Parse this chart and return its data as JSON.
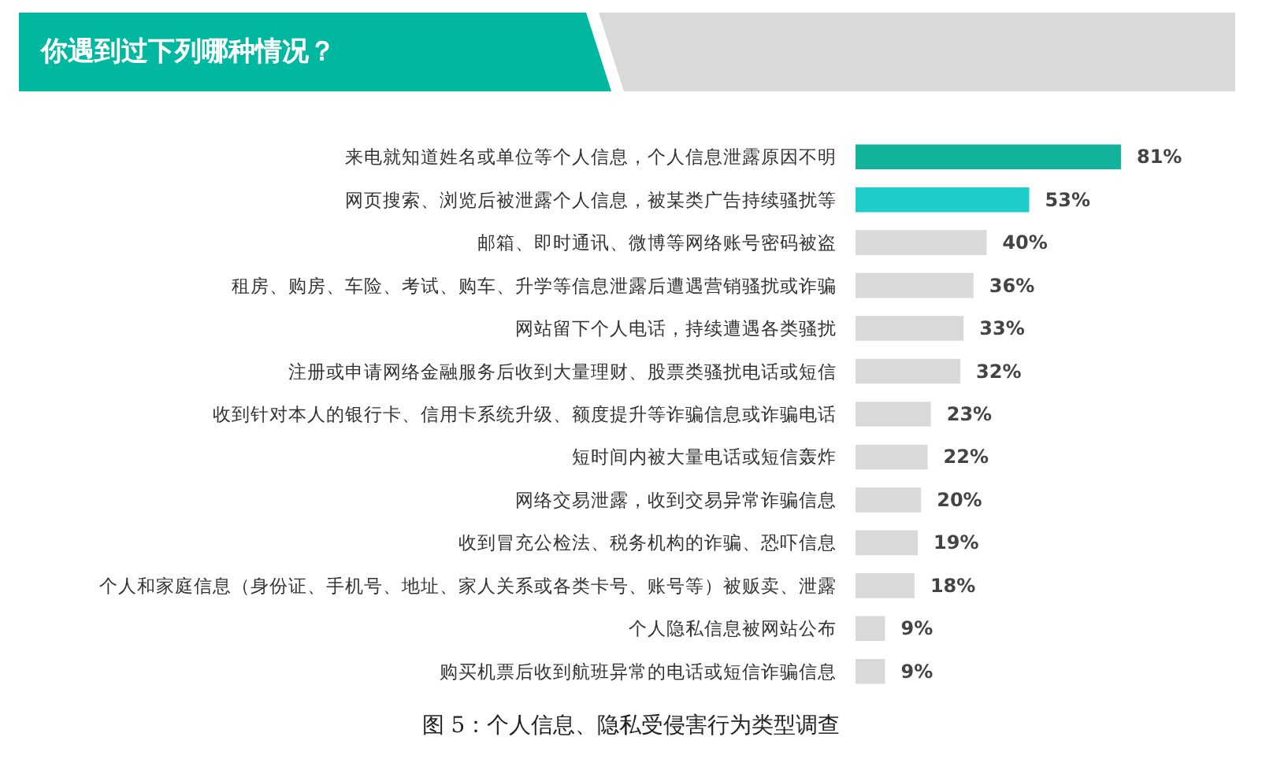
{
  "chart_data": {
    "type": "bar",
    "orientation": "horizontal",
    "title": "你遇到过下列哪种情况？",
    "categories": [
      "来电就知道姓名或单位等个人信息，个人信息泄露原因不明",
      "网页搜索、浏览后被泄露个人信息，被某类广告持续骚扰等",
      "邮箱、即时通讯、微博等网络账号密码被盗",
      "租房、购房、车险、考试、购车、升学等信息泄露后遭遇营销骚扰或诈骗",
      "网站留下个人电话，持续遭遇各类骚扰",
      "注册或申请网络金融服务后收到大量理财、股票类骚扰电话或短信",
      "收到针对本人的银行卡、信用卡系统升级、额度提升等诈骗信息或诈骗电话",
      "短时间内被大量电话或短信轰炸",
      "网络交易泄露，收到交易异常诈骗信息",
      "收到冒充公检法、税务机构的诈骗、恐吓信息",
      "个人和家庭信息（身份证、手机号、地址、家人关系或各类卡号、账号等）被贩卖、泄露",
      "个人隐私信息被网站公布",
      "购买机票后收到航班异常的电话或短信诈骗信息"
    ],
    "values": [
      81,
      53,
      40,
      36,
      33,
      32,
      23,
      22,
      20,
      19,
      18,
      9,
      9
    ],
    "value_labels": [
      "81%",
      "53%",
      "40%",
      "36%",
      "33%",
      "32%",
      "23%",
      "22%",
      "20%",
      "19%",
      "18%",
      "9%",
      "9%"
    ],
    "colors": [
      "#12b39a",
      "#1ccdc8",
      "#d9d9d9",
      "#d9d9d9",
      "#d9d9d9",
      "#d9d9d9",
      "#d9d9d9",
      "#d9d9d9",
      "#d9d9d9",
      "#d9d9d9",
      "#d9d9d9",
      "#d9d9d9",
      "#d9d9d9"
    ],
    "annotations": [
      "图 5：个人信息、隐私受侵害行为类型调查"
    ]
  }
}
